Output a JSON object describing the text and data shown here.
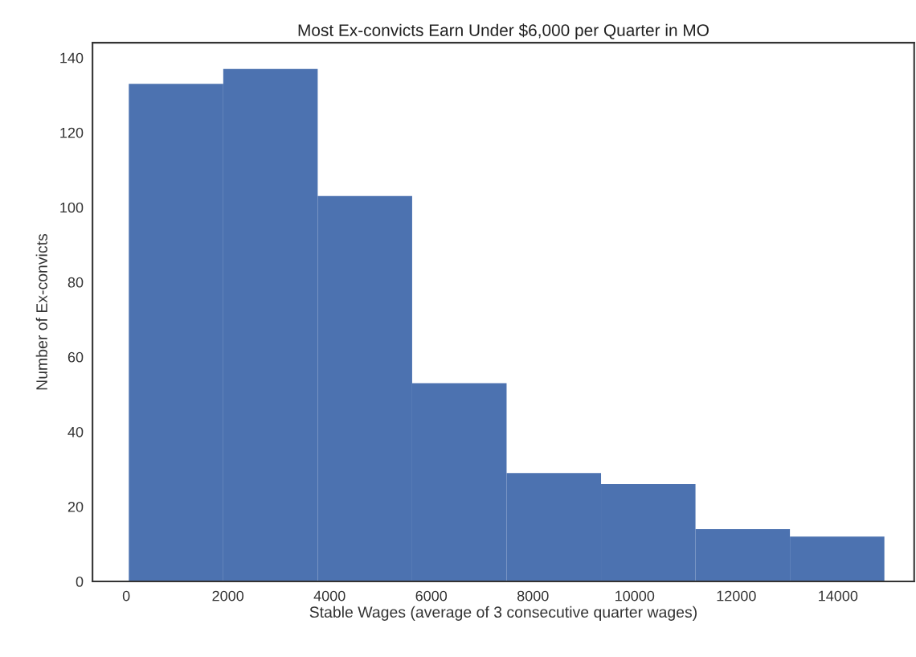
{
  "chart_data": {
    "type": "histogram",
    "title": "Most Ex-convicts Earn Under $6,000 per Quarter in MO",
    "xlabel": "Stable Wages (average of 3 consecutive quarter wages)",
    "ylabel": "Number of Ex-convicts",
    "bins": [
      50,
      1908,
      3766,
      5624,
      7482,
      9340,
      11198,
      13056,
      14914
    ],
    "values": [
      133,
      137,
      103,
      53,
      29,
      26,
      14,
      12
    ],
    "color": "#4c72b0",
    "xlim": [
      -664,
      15500
    ],
    "ylim": [
      0,
      144
    ],
    "xticks": [
      0,
      2000,
      4000,
      6000,
      8000,
      10000,
      12000,
      14000
    ],
    "yticks": [
      0,
      20,
      40,
      60,
      80,
      100,
      120,
      140
    ],
    "grid": false
  }
}
